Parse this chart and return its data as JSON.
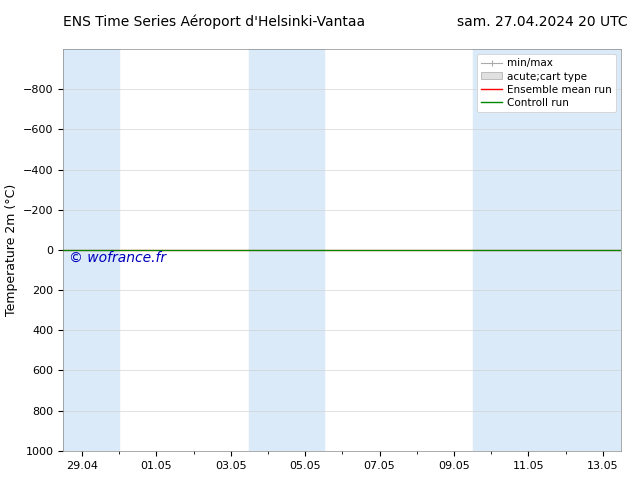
{
  "title_left": "ENS Time Series Aéroport d'Helsinki-Vantaa",
  "title_right": "sam. 27.04.2024 20 UTC",
  "ylabel": "Temperature 2m (°C)",
  "watermark": "© wofrance.fr",
  "ylim_bottom": 1000,
  "ylim_top": -1000,
  "yticks": [
    -800,
    -600,
    -400,
    -200,
    0,
    200,
    400,
    600,
    800,
    1000
  ],
  "x_dates": [
    "29.04",
    "01.05",
    "03.05",
    "05.05",
    "07.05",
    "09.05",
    "11.05",
    "13.05"
  ],
  "x_values": [
    0,
    2,
    4,
    6,
    8,
    10,
    12,
    14
  ],
  "xlim": [
    -0.5,
    14.5
  ],
  "shaded_bands": [
    {
      "x_start": -0.5,
      "x_end": 1.0,
      "color": "#daeaf8"
    },
    {
      "x_start": 4.5,
      "x_end": 6.5,
      "color": "#daeaf8"
    },
    {
      "x_start": 10.5,
      "x_end": 14.5,
      "color": "#daeaf8"
    }
  ],
  "ensemble_mean_y": 0.0,
  "control_run_y": 0.0,
  "ensemble_mean_color": "#ff0000",
  "control_run_color": "#008800",
  "background_color": "#ffffff",
  "legend_entries": [
    {
      "label": "min/max"
    },
    {
      "label": "acute;cart type"
    },
    {
      "label": "Ensemble mean run"
    },
    {
      "label": "Controll run"
    }
  ],
  "watermark_color": "#0000bb",
  "watermark_fontsize": 10,
  "title_fontsize": 10,
  "tick_fontsize": 8,
  "ylabel_fontsize": 9,
  "legend_fontsize": 7.5
}
